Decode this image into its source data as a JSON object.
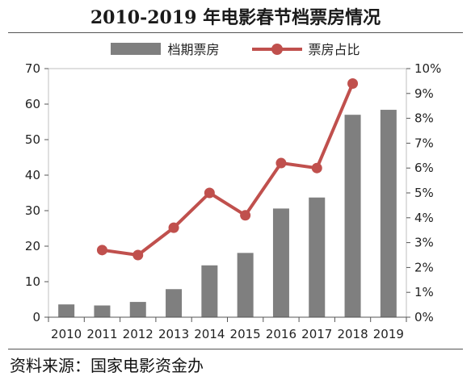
{
  "chart_data": {
    "type": "bar",
    "title": "2010-2019 年电影春节档票房情况",
    "categories": [
      "2010",
      "2011",
      "2012",
      "2013",
      "2014",
      "2015",
      "2016",
      "2017",
      "2018",
      "2019"
    ],
    "series": [
      {
        "name": "档期票房",
        "type": "bar",
        "axis": "left",
        "color": "#7f7f7f",
        "values": [
          3.6,
          3.3,
          4.3,
          7.9,
          14.6,
          18.1,
          30.6,
          33.7,
          57.0,
          58.4
        ]
      },
      {
        "name": "票房占比",
        "type": "line",
        "axis": "right",
        "color": "#c0504d",
        "values": [
          null,
          2.7,
          2.5,
          3.6,
          5.0,
          4.1,
          6.2,
          6.0,
          9.4,
          null
        ]
      }
    ],
    "y_left": {
      "min": 0,
      "max": 70,
      "ticks": [
        "0",
        "10",
        "20",
        "30",
        "40",
        "50",
        "60",
        "70"
      ]
    },
    "y_right": {
      "min": 0,
      "max": 10,
      "ticks": [
        "0%",
        "1%",
        "2%",
        "3%",
        "4%",
        "5%",
        "6%",
        "7%",
        "8%",
        "9%",
        "10%"
      ]
    },
    "grid": false,
    "legend": "top"
  },
  "source": "资料来源：国家电影资金办"
}
